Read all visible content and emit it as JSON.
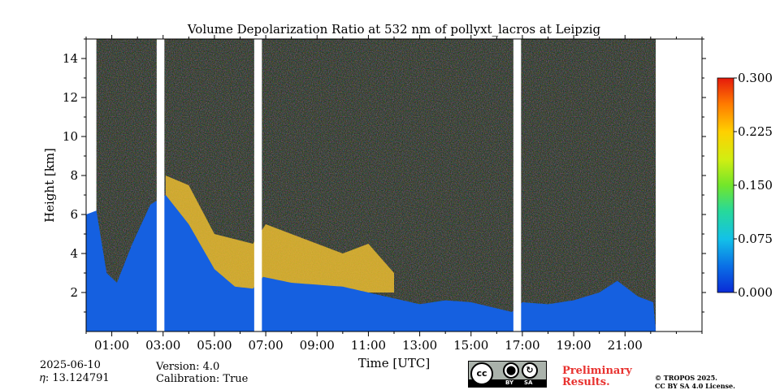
{
  "chart_data": {
    "type": "heatmap",
    "title": "Volume Depolarization Ratio at 532 nm of pollyxt_lacros at Leipzig",
    "xlabel": "Time [UTC]",
    "ylabel": "Height [km]",
    "x_ticks": [
      "01:00",
      "03:00",
      "05:00",
      "07:00",
      "09:00",
      "11:00",
      "13:00",
      "15:00",
      "17:00",
      "19:00",
      "21:00"
    ],
    "x_tick_hours": [
      1,
      3,
      5,
      7,
      9,
      11,
      13,
      15,
      17,
      19,
      21
    ],
    "xlim": [
      0,
      24
    ],
    "y_ticks": [
      "2",
      "4",
      "6",
      "8",
      "10",
      "12",
      "14"
    ],
    "y_tick_values": [
      2,
      4,
      6,
      8,
      10,
      12,
      14
    ],
    "ylim": [
      0,
      15
    ],
    "colorbar": {
      "ticks": [
        "0.000",
        "0.075",
        "0.150",
        "0.225",
        "0.300"
      ],
      "tick_values": [
        0.0,
        0.075,
        0.15,
        0.225,
        0.3
      ],
      "range": [
        0.0,
        0.3
      ]
    },
    "data_gaps_utc": [
      [
        2.75,
        3.05
      ],
      [
        6.55,
        6.85
      ],
      [
        16.65,
        16.95
      ],
      [
        22.2,
        22.6
      ]
    ],
    "boundary_layer_top_km": [
      [
        0.0,
        6.0
      ],
      [
        0.4,
        6.2
      ],
      [
        0.8,
        3.0
      ],
      [
        1.2,
        2.5
      ],
      [
        1.8,
        4.5
      ],
      [
        2.5,
        6.5
      ],
      [
        3.1,
        7.0
      ],
      [
        4.0,
        5.5
      ],
      [
        5.0,
        3.2
      ],
      [
        5.8,
        2.3
      ],
      [
        6.5,
        2.2
      ],
      [
        6.9,
        2.8
      ],
      [
        8.0,
        2.5
      ],
      [
        9.0,
        2.4
      ],
      [
        10.0,
        2.3
      ],
      [
        11.0,
        2.0
      ],
      [
        12.0,
        1.7
      ],
      [
        13.0,
        1.4
      ],
      [
        14.0,
        1.6
      ],
      [
        15.0,
        1.5
      ],
      [
        16.6,
        1.0
      ],
      [
        17.0,
        1.5
      ],
      [
        18.0,
        1.4
      ],
      [
        19.0,
        1.6
      ],
      [
        20.0,
        2.0
      ],
      [
        20.7,
        2.6
      ],
      [
        21.5,
        1.8
      ],
      [
        22.1,
        1.5
      ]
    ],
    "aerosol_layer_top_km": [
      [
        3.1,
        8.0
      ],
      [
        4.0,
        7.5
      ],
      [
        5.0,
        5.0
      ],
      [
        6.5,
        4.5
      ],
      [
        7.0,
        5.5
      ],
      [
        9.0,
        4.5
      ],
      [
        10.0,
        4.0
      ],
      [
        11.0,
        4.5
      ],
      [
        12.0,
        3.0
      ]
    ]
  },
  "info": {
    "date": "2025-06-10",
    "eta": "𝜂: 13.124791",
    "version": "Version: 4.0",
    "calibration": "Calibration: True"
  },
  "license": {
    "cc": "cc",
    "by": "BY",
    "sa": "SA",
    "preliminary_line1": "Preliminary",
    "preliminary_line2": "Results.",
    "copyright": "© TROPOS 2025.",
    "license_text": "CC BY SA 4.0 License."
  }
}
